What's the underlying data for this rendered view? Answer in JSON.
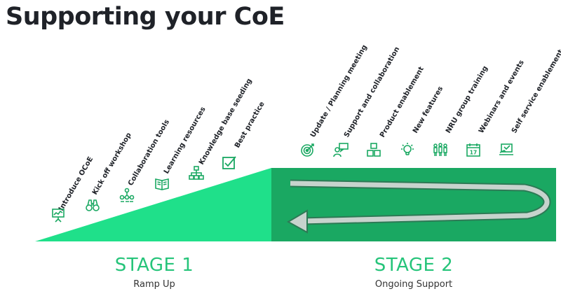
{
  "title": "Supporting your CoE",
  "stage1": {
    "title": "STAGE 1",
    "subtitle": "Ramp Up",
    "items": [
      {
        "label": "Introduce OCoE",
        "icon": "presentation-board-icon"
      },
      {
        "label": "Kick off workshop",
        "icon": "binoculars-icon"
      },
      {
        "label": "Collaboration tools",
        "icon": "team-network-icon"
      },
      {
        "label": "Learning resources",
        "icon": "open-book-icon"
      },
      {
        "label": "Knowledge base seeding",
        "icon": "hierarchy-icon"
      },
      {
        "label": "Best practice",
        "icon": "checkbox-icon"
      }
    ]
  },
  "stage2": {
    "title": "STAGE 2",
    "subtitle": "Ongoing Support",
    "items": [
      {
        "label": "Update / Planning meeting",
        "icon": "target-icon"
      },
      {
        "label": "Support and collaboration",
        "icon": "person-chat-icon"
      },
      {
        "label": "Product enablement",
        "icon": "boxes-icon"
      },
      {
        "label": "New features",
        "icon": "lightbulb-icon"
      },
      {
        "label": "NRU group training",
        "icon": "group-icon"
      },
      {
        "label": "Webinars and events",
        "icon": "calendar-icon"
      },
      {
        "label": "Self service enablement",
        "icon": "laptop-hand-icon"
      }
    ]
  },
  "colors": {
    "ramp": "#1fe08a",
    "block": "#1aa862",
    "icon": "#1aa862",
    "stage_text": "#26c47a"
  }
}
